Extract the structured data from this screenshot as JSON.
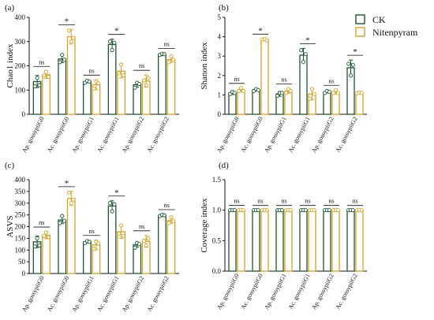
{
  "chart_data": [
    {
      "id": "a",
      "type": "bar",
      "panel_label": "(a)",
      "ylabel": "Chao1 index",
      "ylim": [
        0,
        400
      ],
      "yticks": [
        0,
        100,
        200,
        300,
        400
      ],
      "categories": [
        "Ap. gossypiiG0",
        "Ac. gossypiiG0",
        "Ap. gossypiiG1",
        "Ac. gossypiiG1",
        "Ap. gossypiiG2",
        "Ac. gossypiiG2"
      ],
      "series": [
        {
          "name": "CK",
          "values": [
            135,
            228,
            135,
            288,
            122,
            247
          ],
          "errors": [
            25,
            15,
            5,
            22,
            10,
            5
          ],
          "points": [
            [
              115,
              150,
              120
            ],
            [
              215,
              245,
              225
            ],
            [
              130,
              138,
              135
            ],
            [
              300,
              265,
              295
            ],
            [
              110,
              130,
              125
            ],
            [
              245,
              250,
              248
            ]
          ]
        },
        {
          "name": "Nitenpyram",
          "values": [
            163,
            320,
            122,
            178,
            137,
            226
          ],
          "errors": [
            15,
            30,
            20,
            28,
            25,
            12
          ],
          "points": [
            [
              160,
              175,
              155
            ],
            [
              345,
              300,
              315
            ],
            [
              105,
              135,
              128
            ],
            [
              170,
              205,
              160
            ],
            [
              140,
              120,
              150
            ],
            [
              215,
              240,
              225
            ]
          ]
        }
      ],
      "significance": [
        "ns",
        "*",
        "ns",
        "*",
        "ns",
        "ns"
      ]
    },
    {
      "id": "b",
      "type": "bar",
      "panel_label": "(b)",
      "ylabel": "Shanon index",
      "ylim": [
        0,
        5
      ],
      "yticks": [
        0,
        1,
        2,
        3,
        4,
        5
      ],
      "categories": [
        "Ap. gossypiiG0",
        "Ac. gossypiiG0",
        "Ap. gossypiiG1",
        "Ac. gossypiiG1",
        "Ap. gossypiiG2",
        "Ac. gossypiiG2"
      ],
      "series": [
        {
          "name": "CK",
          "values": [
            1.1,
            1.25,
            1.05,
            3.05,
            1.15,
            2.4
          ],
          "errors": [
            0.08,
            0.05,
            0.12,
            0.35,
            0.05,
            0.4
          ],
          "points": [
            [
              1.05,
              1.15,
              1.1
            ],
            [
              1.2,
              1.3,
              1.25
            ],
            [
              0.95,
              1.1,
              1.1
            ],
            [
              3.3,
              2.7,
              3.1
            ],
            [
              1.1,
              1.2,
              1.15
            ],
            [
              2.6,
              2.0,
              2.55
            ]
          ]
        },
        {
          "name": "Nitenpyram",
          "values": [
            1.25,
            3.85,
            1.2,
            1.05,
            1.15,
            1.1
          ],
          "errors": [
            0.1,
            0.04,
            0.12,
            0.3,
            0.1,
            0.04
          ],
          "points": [
            [
              1.2,
              1.35,
              1.2
            ],
            [
              3.85,
              3.88,
              3.82
            ],
            [
              1.1,
              1.3,
              1.2
            ],
            [
              0.8,
              1.3,
              1.05
            ],
            [
              1.1,
              1.25,
              1.1
            ],
            [
              1.08,
              1.12,
              1.1
            ]
          ]
        }
      ],
      "significance": [
        "ns",
        "*",
        "ns",
        "*",
        "ns",
        "*"
      ]
    },
    {
      "id": "c",
      "type": "bar",
      "panel_label": "(c)",
      "ylabel": "ASVS",
      "ylim": [
        0,
        400
      ],
      "yticks": [
        0,
        50,
        100,
        150,
        200,
        250,
        300,
        350,
        400
      ],
      "categories": [
        "Ap. gossypiiG0",
        "Ac. gossypiiG0",
        "Ap. gossypiiG1",
        "Ac. gossypiiG1",
        "Ap. gossypiiG2",
        "Ac. gossypiiG2"
      ],
      "series": [
        {
          "name": "CK",
          "values": [
            135,
            228,
            135,
            288,
            122,
            247
          ],
          "errors": [
            25,
            15,
            5,
            22,
            10,
            5
          ],
          "points": [
            [
              115,
              150,
              120
            ],
            [
              215,
              245,
              225
            ],
            [
              130,
              138,
              135
            ],
            [
              300,
              265,
              295
            ],
            [
              110,
              130,
              125
            ],
            [
              245,
              250,
              248
            ]
          ]
        },
        {
          "name": "Nitenpyram",
          "values": [
            163,
            320,
            122,
            178,
            137,
            226
          ],
          "errors": [
            15,
            30,
            20,
            28,
            25,
            12
          ],
          "points": [
            [
              160,
              175,
              155
            ],
            [
              345,
              300,
              315
            ],
            [
              105,
              135,
              128
            ],
            [
              170,
              205,
              160
            ],
            [
              140,
              120,
              150
            ],
            [
              215,
              240,
              225
            ]
          ]
        }
      ],
      "significance": [
        "ns",
        "*",
        "ns",
        "*",
        "ns",
        "ns"
      ]
    },
    {
      "id": "d",
      "type": "bar",
      "panel_label": "(d)",
      "ylabel": "Coverage index",
      "ylim": [
        0,
        1.5
      ],
      "yticks": [
        0.0,
        0.5,
        1.0,
        1.5
      ],
      "yticklabels": [
        "0.0",
        "0.5",
        "1.0",
        "1.5"
      ],
      "categories": [
        "Ap. gossypiiG0",
        "Ac. gossypiiG0",
        "Ap. gossypiiG1",
        "Ac. gossypiiG1",
        "Ap. gossypiiG2",
        "Ac. gossypiiG2"
      ],
      "series": [
        {
          "name": "CK",
          "values": [
            1.0,
            1.0,
            1.0,
            1.0,
            1.0,
            1.0
          ],
          "errors": [
            0,
            0,
            0,
            0,
            0,
            0
          ],
          "points": [
            [
              1,
              1,
              1
            ],
            [
              1,
              1,
              1
            ],
            [
              1,
              1,
              1
            ],
            [
              1,
              1,
              1
            ],
            [
              1,
              1,
              1
            ],
            [
              1,
              1,
              1
            ]
          ]
        },
        {
          "name": "Nitenpyram",
          "values": [
            1.0,
            1.0,
            1.0,
            1.0,
            1.0,
            1.0
          ],
          "errors": [
            0,
            0,
            0,
            0,
            0,
            0
          ],
          "points": [
            [
              1,
              1,
              1
            ],
            [
              1,
              1,
              1
            ],
            [
              1,
              1,
              1
            ],
            [
              1,
              1,
              1
            ],
            [
              1,
              1,
              1
            ],
            [
              1,
              1,
              1
            ]
          ]
        }
      ],
      "significance": [
        "ns",
        "ns",
        "ns",
        "ns",
        "ns",
        "ns"
      ]
    }
  ],
  "legend": {
    "position": "top-right",
    "entries": [
      {
        "name": "CK",
        "color": "#1e5631"
      },
      {
        "name": "Nitenpyram",
        "color": "#d9a520"
      }
    ]
  },
  "colors": {
    "CK": "#1e5631",
    "Nitenpyram": "#d9a520",
    "axis": "#111111"
  }
}
